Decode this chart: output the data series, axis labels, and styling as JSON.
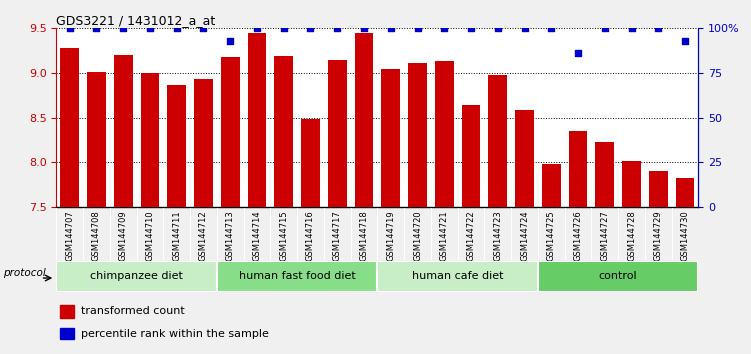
{
  "title": "GDS3221 / 1431012_a_at",
  "samples": [
    "GSM144707",
    "GSM144708",
    "GSM144709",
    "GSM144710",
    "GSM144711",
    "GSM144712",
    "GSM144713",
    "GSM144714",
    "GSM144715",
    "GSM144716",
    "GSM144717",
    "GSM144718",
    "GSM144719",
    "GSM144720",
    "GSM144721",
    "GSM144722",
    "GSM144723",
    "GSM144724",
    "GSM144725",
    "GSM144726",
    "GSM144727",
    "GSM144728",
    "GSM144729",
    "GSM144730"
  ],
  "bar_values": [
    9.28,
    9.01,
    9.2,
    9.0,
    8.87,
    8.93,
    9.18,
    9.45,
    9.19,
    8.49,
    9.15,
    9.45,
    9.04,
    9.11,
    9.13,
    8.64,
    8.98,
    8.59,
    7.98,
    8.35,
    8.23,
    8.02,
    7.9,
    7.83
  ],
  "percentile_values": [
    100,
    100,
    100,
    100,
    100,
    100,
    93,
    100,
    100,
    100,
    100,
    100,
    100,
    100,
    100,
    100,
    100,
    100,
    100,
    86,
    100,
    100,
    100,
    93
  ],
  "bar_color": "#cc0000",
  "percentile_color": "#0000cc",
  "ylim_left": [
    7.5,
    9.5
  ],
  "ylim_right": [
    0,
    100
  ],
  "yticks_left": [
    7.5,
    8.0,
    8.5,
    9.0,
    9.5
  ],
  "yticks_right": [
    0,
    25,
    50,
    75,
    100
  ],
  "ytick_labels_right": [
    "0",
    "25",
    "50",
    "75",
    "100%"
  ],
  "groups": [
    {
      "label": "chimpanzee diet",
      "start": 0,
      "end": 6,
      "color": "#c8eec8"
    },
    {
      "label": "human fast food diet",
      "start": 6,
      "end": 12,
      "color": "#88dd88"
    },
    {
      "label": "human cafe diet",
      "start": 12,
      "end": 18,
      "color": "#c8eec8"
    },
    {
      "label": "control",
      "start": 18,
      "end": 24,
      "color": "#66cc66"
    }
  ],
  "protocol_label": "protocol",
  "legend_bar_label": "transformed count",
  "legend_dot_label": "percentile rank within the sample",
  "background_color": "#f0f0f0",
  "plot_bg_color": "#ffffff",
  "xtick_bg_color": "#d0d0d0",
  "bar_bottom": 7.5
}
